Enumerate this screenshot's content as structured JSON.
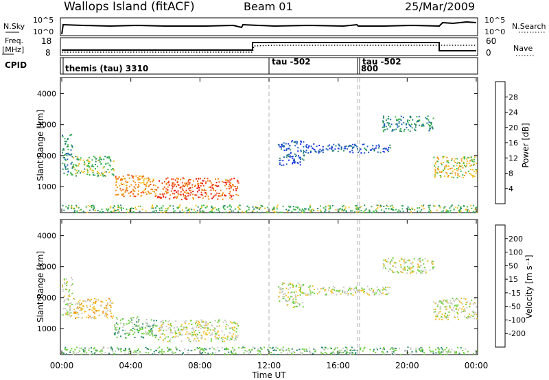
{
  "header": {
    "site_title": "Wallops Island (fitACF)",
    "beam": "Beam 01",
    "date": "25/Mar/2009"
  },
  "status_panels": {
    "nsky_label": "N.Sky",
    "nsky_ticks": [
      "10^5",
      "10^0"
    ],
    "nsearch_label": "N.Search",
    "nsearch_ticks": [
      "10^5",
      "10^0"
    ],
    "freq_label_1": "Freq.",
    "freq_label_2": "[MHz]",
    "freq_ticks": [
      "18",
      "8"
    ],
    "nave_label": "Nave",
    "nave_ticks": [
      "60",
      "0"
    ],
    "cpid_label": "CPID",
    "cpid_segments": [
      {
        "label": "themis (tau) 3310",
        "start_hour": 0.0
      },
      {
        "label": "tau -502",
        "start_hour": 12.0
      },
      {
        "label": "800",
        "start_hour": 17.1
      },
      {
        "label": "tau -502",
        "start_hour": 17.2
      }
    ]
  },
  "chart_data": [
    {
      "type": "heatmap",
      "name": "power",
      "xlabel": "Time UT",
      "ylabel": "Slant Range [km]",
      "x_ticks": [
        "00:00",
        "04:00",
        "08:00",
        "12:00",
        "16:00",
        "20:00",
        "00:00"
      ],
      "xlim_hours": [
        0,
        24
      ],
      "y_ticks": [
        1000,
        2000,
        3000,
        4000
      ],
      "ylim_km": [
        180,
        4500
      ],
      "colorbar": {
        "label": "Power [dB]",
        "ticks": [
          "4",
          "8",
          "12",
          "16",
          "20",
          "24",
          "28"
        ],
        "colors": [
          "#1f2ff0",
          "#1f5fb8",
          "#2a8a6c",
          "#3cb84a",
          "#f0c020",
          "#f08c10",
          "#f04a10",
          "#e81010"
        ]
      },
      "echo_regions": [
        {
          "t0": 0.0,
          "t1": 0.6,
          "r0": 1400,
          "r1": 2700,
          "level": 2
        },
        {
          "t0": 0.6,
          "t1": 3.0,
          "r0": 1350,
          "r1": 2000,
          "level": 3
        },
        {
          "t0": 3.0,
          "t1": 5.5,
          "r0": 700,
          "r1": 1400,
          "level": 5
        },
        {
          "t0": 5.5,
          "t1": 10.2,
          "r0": 600,
          "r1": 1300,
          "level": 6
        },
        {
          "t0": 12.5,
          "t1": 14.0,
          "r0": 1700,
          "r1": 2500,
          "level": 1
        },
        {
          "t0": 14.0,
          "t1": 19.0,
          "r0": 2100,
          "r1": 2400,
          "level": 1
        },
        {
          "t0": 18.5,
          "t1": 21.5,
          "r0": 2800,
          "r1": 3300,
          "level": 2
        },
        {
          "t0": 21.5,
          "t1": 24.0,
          "r0": 1300,
          "r1": 2000,
          "level": 4
        },
        {
          "t0": 0.0,
          "t1": 24.0,
          "r0": 180,
          "r1": 420,
          "level": 3
        }
      ]
    },
    {
      "type": "heatmap",
      "name": "velocity",
      "xlabel": "Time UT",
      "ylabel": "Slant Range [km]",
      "x_ticks": [
        "00:00",
        "04:00",
        "08:00",
        "12:00",
        "16:00",
        "20:00",
        "00:00"
      ],
      "xlim_hours": [
        0,
        24
      ],
      "y_ticks": [
        1000,
        2000,
        3000,
        4000
      ],
      "ylim_km": [
        180,
        4500
      ],
      "colorbar": {
        "label": "Velocity [m s⁻¹]",
        "ticks": [
          "200",
          "100",
          "50",
          "15",
          "-15",
          "-50",
          "-100",
          "-200"
        ],
        "colors": [
          "#1f2ff0",
          "#1f5fb8",
          "#2a8a6c",
          "#6ad03a",
          "#c8c8c0",
          "#f0c020",
          "#f08c10",
          "#f04a10",
          "#e81010"
        ]
      },
      "echo_regions": [
        {
          "t0": 0.0,
          "t1": 0.6,
          "r0": 1400,
          "r1": 2700,
          "level": 4
        },
        {
          "t0": 0.6,
          "t1": 3.0,
          "r0": 1350,
          "r1": 2000,
          "level": 5
        },
        {
          "t0": 3.0,
          "t1": 5.5,
          "r0": 700,
          "r1": 1400,
          "level": 3
        },
        {
          "t0": 5.5,
          "t1": 10.2,
          "r0": 600,
          "r1": 1300,
          "level": 4
        },
        {
          "t0": 12.5,
          "t1": 14.0,
          "r0": 1700,
          "r1": 2500,
          "level": 4
        },
        {
          "t0": 14.0,
          "t1": 19.0,
          "r0": 2100,
          "r1": 2400,
          "level": 4
        },
        {
          "t0": 18.5,
          "t1": 21.5,
          "r0": 2800,
          "r1": 3300,
          "level": 4
        },
        {
          "t0": 21.5,
          "t1": 24.0,
          "r0": 1300,
          "r1": 2000,
          "level": 4
        },
        {
          "t0": 0.0,
          "t1": 24.0,
          "r0": 180,
          "r1": 420,
          "level": 3
        }
      ]
    }
  ]
}
